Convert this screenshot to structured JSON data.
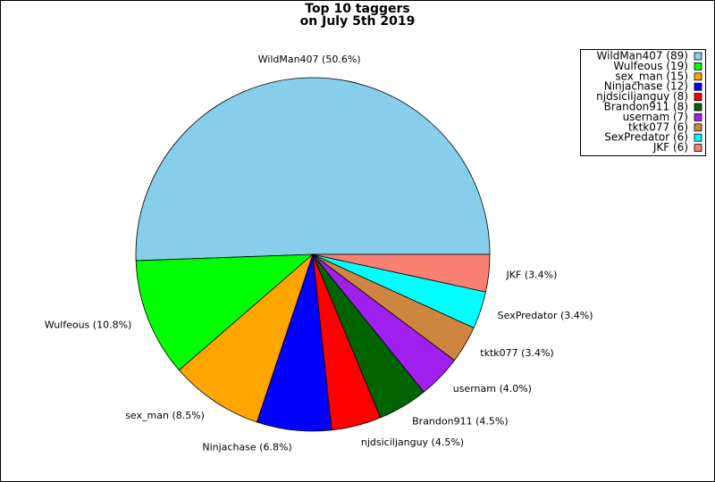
{
  "chart_data": {
    "type": "pie",
    "title": [
      "Top 10 taggers",
      "on July 5th 2019"
    ],
    "categories": [
      "WildMan407 (89)",
      "Wulfeous (19)",
      "sex_man (15)",
      "Ninjachase (12)",
      "njdsiciljanguy (8)",
      "Brandon911 (8)",
      "usernam (7)",
      "tktk077 (6)",
      "SexPredator (6)",
      "JKF (6)"
    ],
    "values": [
      89,
      19,
      15,
      12,
      8,
      8,
      7,
      6,
      6,
      6
    ],
    "value_labels": [
      "WildMan407 (50.6%)",
      "Wulfeous (10.8%)",
      "sex_man (8.5%)",
      "Ninjachase (6.8%)",
      "njdsiciljanguy (4.5%)",
      "Brandon911 (4.5%)",
      "usernam (4.0%)",
      "tktk077 (3.4%)",
      "SexPredator (3.4%)",
      "JKF (3.4%)"
    ],
    "colors": [
      "#87ceeb",
      "#00ff00",
      "#ffa500",
      "#0000ff",
      "#ff0000",
      "#006400",
      "#a020f0",
      "#cd853f",
      "#00ffff",
      "#fa8072"
    ],
    "legend": "upper right"
  }
}
